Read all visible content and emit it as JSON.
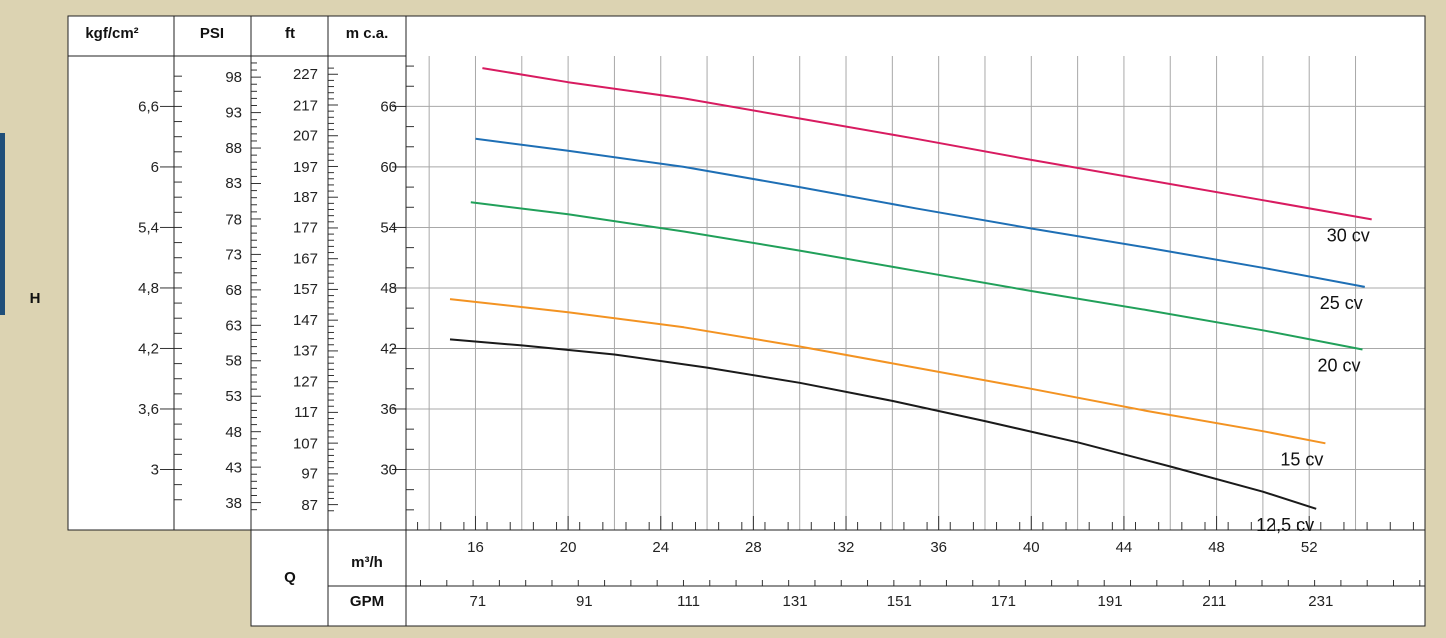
{
  "headers": {
    "kgf": "kgf/cm²",
    "psi": "PSI",
    "ft": "ft",
    "mca": "m c.a.",
    "q": "Q",
    "m3h": "m³/h",
    "gpm": "GPM",
    "h": "H"
  },
  "colors": {
    "background": "#dcd3b2",
    "panel": "#ffffff",
    "grid": "#a8a8a8",
    "sideTab": "#1f4e79"
  },
  "chart_data": {
    "type": "line",
    "xlabel": "Q",
    "ylabel": "H",
    "x_unit": "m³/h",
    "y_unit": "m c.a.",
    "xlim": [
      13,
      57
    ],
    "ylim": [
      24,
      71
    ],
    "grid": true,
    "scales": {
      "kgf": {
        "ticks": [
          "6,6",
          "6",
          "5,4",
          "4,8",
          "4,2",
          "3,6",
          "3"
        ],
        "values": [
          66,
          60,
          54,
          48,
          42,
          36,
          30
        ]
      },
      "psi": {
        "ticks": [
          "98",
          "93",
          "88",
          "83",
          "78",
          "73",
          "68",
          "63",
          "58",
          "53",
          "48",
          "43",
          "38"
        ],
        "values": [
          68.9,
          65.4,
          61.9,
          58.4,
          54.8,
          51.3,
          47.8,
          44.3,
          40.8,
          37.3,
          33.7,
          30.2,
          26.7
        ]
      },
      "ft": {
        "ticks": [
          "227",
          "217",
          "207",
          "197",
          "187",
          "177",
          "167",
          "157",
          "147",
          "137",
          "127",
          "117",
          "107",
          "97",
          "87"
        ],
        "values": [
          69.2,
          66.1,
          63.1,
          60.0,
          57.0,
          54.0,
          50.9,
          47.9,
          44.8,
          41.8,
          38.7,
          35.7,
          32.6,
          29.6,
          26.5
        ]
      },
      "mca": {
        "ticks": [
          "66",
          "60",
          "54",
          "48",
          "42",
          "36",
          "30"
        ],
        "values": [
          66,
          60,
          54,
          48,
          42,
          36,
          30
        ]
      },
      "m3h": {
        "ticks": [
          "16",
          "20",
          "24",
          "28",
          "32",
          "36",
          "40",
          "44",
          "48",
          "52"
        ],
        "values": [
          16,
          20,
          24,
          28,
          32,
          36,
          40,
          44,
          48,
          52
        ]
      },
      "gpm": {
        "ticks": [
          "71",
          "91",
          "111",
          "131",
          "151",
          "171",
          "191",
          "211",
          "231"
        ],
        "values": [
          16.1,
          20.7,
          25.2,
          29.8,
          34.3,
          38.8,
          43.4,
          47.9,
          52.5
        ]
      }
    },
    "series": [
      {
        "name": "30 cv",
        "color": "#d81b60",
        "x": [
          16.3,
          20,
          25,
          30,
          35,
          40,
          45,
          50,
          54.7
        ],
        "y": [
          69.8,
          68.4,
          66.8,
          64.8,
          62.8,
          60.7,
          58.7,
          56.7,
          54.8
        ]
      },
      {
        "name": "25 cv",
        "color": "#1e6fb5",
        "x": [
          16.0,
          20,
          25,
          30,
          35,
          40,
          45,
          50,
          54.4
        ],
        "y": [
          62.8,
          61.6,
          60.0,
          58.0,
          55.9,
          53.9,
          52.0,
          50.0,
          48.1
        ]
      },
      {
        "name": "20 cv",
        "color": "#21a05a",
        "x": [
          15.8,
          20,
          25,
          30,
          35,
          40,
          45,
          50,
          54.3
        ],
        "y": [
          56.5,
          55.3,
          53.6,
          51.7,
          49.7,
          47.7,
          45.8,
          43.8,
          41.9
        ]
      },
      {
        "name": "15 cv",
        "color": "#f39322",
        "x": [
          14.9,
          20,
          25,
          30,
          35,
          40,
          45,
          50,
          52.7
        ],
        "y": [
          46.9,
          45.6,
          44.1,
          42.2,
          40.1,
          38.0,
          35.8,
          33.8,
          32.6
        ]
      },
      {
        "name": "12,5 cv",
        "color": "#1a1a1a",
        "x": [
          14.9,
          18,
          22,
          26,
          30,
          34,
          38,
          42,
          46,
          50,
          52.3
        ],
        "y": [
          42.9,
          42.3,
          41.4,
          40.1,
          38.6,
          36.8,
          34.8,
          32.7,
          30.3,
          27.8,
          26.1
        ]
      }
    ]
  }
}
